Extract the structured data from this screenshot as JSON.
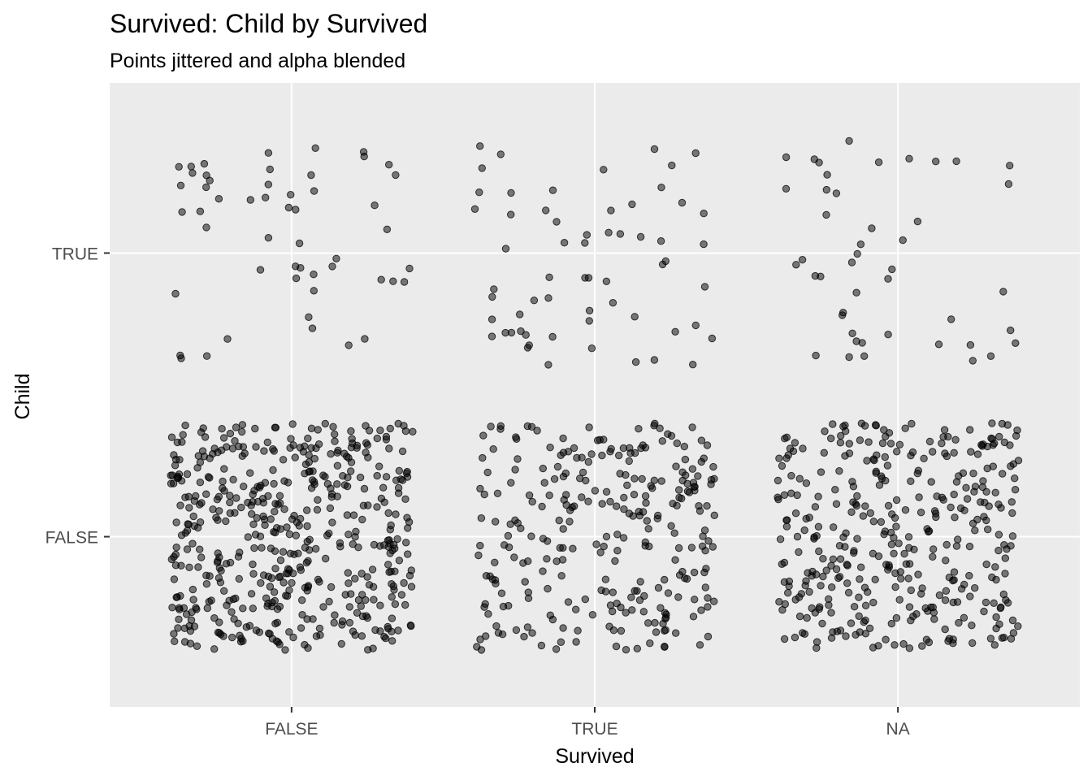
{
  "chart_data": {
    "type": "scatter",
    "title": "Survived: Child by Survived",
    "subtitle": "Points jittered and alpha blended",
    "xlabel": "Survived",
    "ylabel": "Child",
    "x_categories": [
      "FALSE",
      "TRUE",
      "NA"
    ],
    "y_categories": [
      "FALSE",
      "TRUE"
    ],
    "jitter": {
      "width": 0.4,
      "height": 0.4
    },
    "point_alpha": 0.5,
    "point_color": "#000000",
    "panel_background": "#ebebeb",
    "grid": true,
    "groups": [
      {
        "x": "FALSE",
        "y": "TRUE",
        "count": 52
      },
      {
        "x": "FALSE",
        "y": "FALSE",
        "count": 497
      },
      {
        "x": "TRUE",
        "y": "TRUE",
        "count": 61
      },
      {
        "x": "TRUE",
        "y": "FALSE",
        "count": 281
      },
      {
        "x": "NA",
        "y": "TRUE",
        "count": 45
      },
      {
        "x": "NA",
        "y": "FALSE",
        "count": 373
      }
    ]
  }
}
